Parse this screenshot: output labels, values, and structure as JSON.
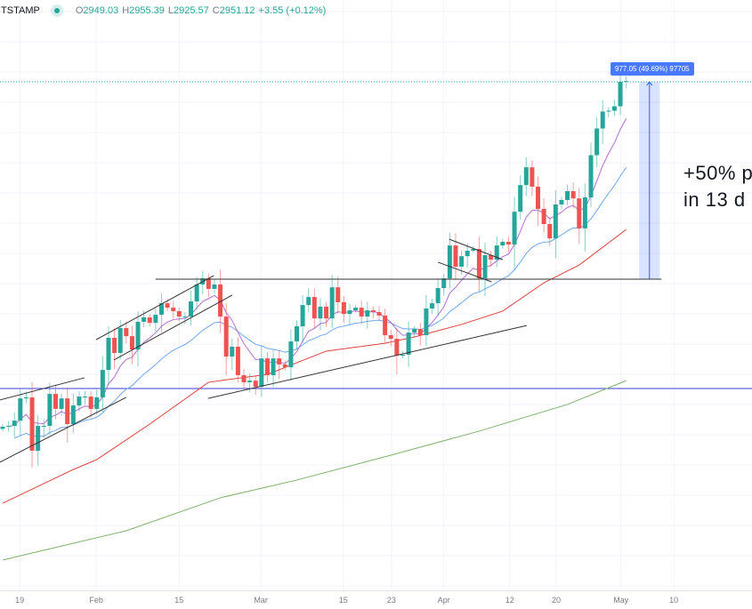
{
  "legend": {
    "source": "ITSTAMP",
    "open_label": "O",
    "open": "2949.03",
    "high_label": "H",
    "high": "2955.39",
    "low_label": "L",
    "low": "2925.57",
    "close_label": "C",
    "close": "2951.12",
    "change": "+3.55 (+0.12%)"
  },
  "annotation": {
    "line1": "+50% p",
    "line2": "in 13 d"
  },
  "measure": {
    "label": "977.05 (49.69%) 97705",
    "from_index": 108.2,
    "to_index": 111.7,
    "from_price": 1966,
    "to_price": 2943
  },
  "chart_data": {
    "type": "candlestick",
    "title": "",
    "price_range": [
      426,
      3348
    ],
    "candle_rule": "open = previous close",
    "first_open": 1225,
    "closes": [
      1236,
      1240,
      1266,
      1376,
      1381,
      1117,
      1240,
      1240,
      1398,
      1324,
      1376,
      1249,
      1341,
      1385,
      1385,
      1324,
      1381,
      1517,
      1676,
      1601,
      1724,
      1684,
      1618,
      1755,
      1777,
      1750,
      1790,
      1847,
      1825,
      1808,
      1781,
      1781,
      1856,
      1940,
      1970,
      1918,
      1940,
      1781,
      1583,
      1632,
      1491,
      1456,
      1464,
      1434,
      1574,
      1491,
      1574,
      1544,
      1530,
      1658,
      1733,
      1838,
      1878,
      1772,
      1830,
      1772,
      1926,
      1852,
      1794,
      1812,
      1825,
      1781,
      1812,
      1803,
      1786,
      1689,
      1671,
      1588,
      1592,
      1702,
      1720,
      1689,
      1821,
      1847,
      1922,
      1970,
      2133,
      2028,
      2080,
      2107,
      2116,
      1970,
      2085,
      2063,
      2133,
      2151,
      2138,
      2300,
      2432,
      2520,
      2424,
      2314,
      2239,
      2168,
      2336,
      2358,
      2402,
      2366,
      2217,
      2371,
      2580,
      2712,
      2796,
      2800,
      2822,
      2943,
      2947
    ],
    "x_ticks": [
      {
        "label": "19",
        "index": 2.9
      },
      {
        "label": "Feb",
        "index": 15.9
      },
      {
        "label": "15",
        "index": 30
      },
      {
        "label": "Mar",
        "index": 43.9
      },
      {
        "label": "15",
        "index": 57.9
      },
      {
        "label": "23",
        "index": 66.1
      },
      {
        "label": "Apr",
        "index": 75
      },
      {
        "label": "12",
        "index": 86.2
      },
      {
        "label": "20",
        "index": 94.1
      },
      {
        "label": "May",
        "index": 105.1
      },
      {
        "label": "10",
        "index": 114.1
      }
    ],
    "ema_fast": {
      "period": 8,
      "color": "#b66dd6"
    },
    "ema_mid": {
      "period": 21,
      "color": "#6fa8f0"
    },
    "ma_slow": {
      "color": "#e0413b",
      "points": [
        [
          0,
          857
        ],
        [
          12,
          1024
        ],
        [
          16,
          1073
        ],
        [
          25,
          1249
        ],
        [
          35,
          1456
        ],
        [
          45,
          1495
        ],
        [
          55,
          1610
        ],
        [
          65,
          1649
        ],
        [
          70,
          1680
        ],
        [
          78,
          1742
        ],
        [
          85,
          1808
        ],
        [
          92,
          1948
        ],
        [
          98,
          2036
        ],
        [
          106,
          2212
        ]
      ]
    },
    "ma_long": {
      "color": "#7cb36a",
      "points": [
        [
          0,
          576
        ],
        [
          21,
          721
        ],
        [
          37,
          884
        ],
        [
          50,
          972
        ],
        [
          66,
          1095
        ],
        [
          81,
          1214
        ],
        [
          96,
          1346
        ],
        [
          106,
          1464
        ]
      ]
    },
    "trendlines": [
      [
        [
          -0.5,
          1368
        ],
        [
          13.9,
          1478
        ]
      ],
      [
        [
          -0.5,
          1060
        ],
        [
          21.0,
          1381
        ]
      ],
      [
        [
          15.9,
          1667
        ],
        [
          35.9,
          1984
        ]
      ],
      [
        [
          18.9,
          1566
        ],
        [
          39.0,
          1887
        ]
      ],
      [
        [
          26.0,
          1966
        ],
        [
          112,
          1966
        ]
      ],
      [
        [
          34.9,
          1376
        ],
        [
          89.1,
          1737
        ]
      ],
      [
        [
          75.9,
          2164
        ],
        [
          85.0,
          2063
        ]
      ],
      [
        [
          74.0,
          2050
        ],
        [
          83.1,
          1953
        ]
      ]
    ],
    "support_level": 1425,
    "current_price_line": 2943,
    "colors": {
      "up": "#26a69a",
      "down": "#ef5350",
      "support": "#3b3bd6",
      "trend": "#333333"
    }
  }
}
